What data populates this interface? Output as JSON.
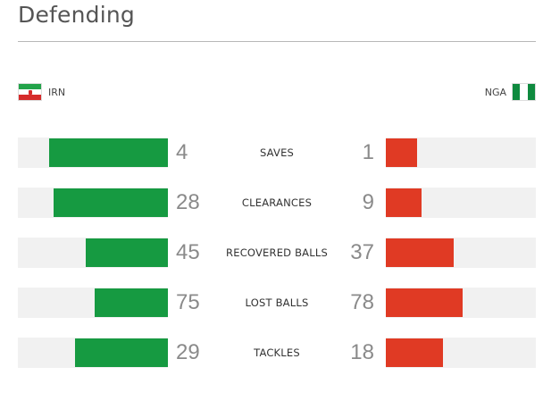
{
  "section": {
    "title": "Defending"
  },
  "teams": {
    "home": {
      "code": "IRN",
      "flag_icon": "iran-flag-icon",
      "bar_color": "#169a41"
    },
    "away": {
      "code": "NGA",
      "flag_icon": "nigeria-flag-icon",
      "bar_color": "#e03a24"
    }
  },
  "stats": [
    {
      "label": "SAVES",
      "home": "4",
      "away": "1",
      "home_bar_pct": 79,
      "away_bar_pct": 21
    },
    {
      "label": "CLEARANCES",
      "home": "28",
      "away": "9",
      "home_bar_pct": 76,
      "away_bar_pct": 24
    },
    {
      "label": "RECOVERED BALLS",
      "home": "45",
      "away": "37",
      "home_bar_pct": 55,
      "away_bar_pct": 45
    },
    {
      "label": "LOST BALLS",
      "home": "75",
      "away": "78",
      "home_bar_pct": 49,
      "away_bar_pct": 51
    },
    {
      "label": "TACKLES",
      "home": "29",
      "away": "18",
      "home_bar_pct": 62,
      "away_bar_pct": 38
    }
  ]
}
